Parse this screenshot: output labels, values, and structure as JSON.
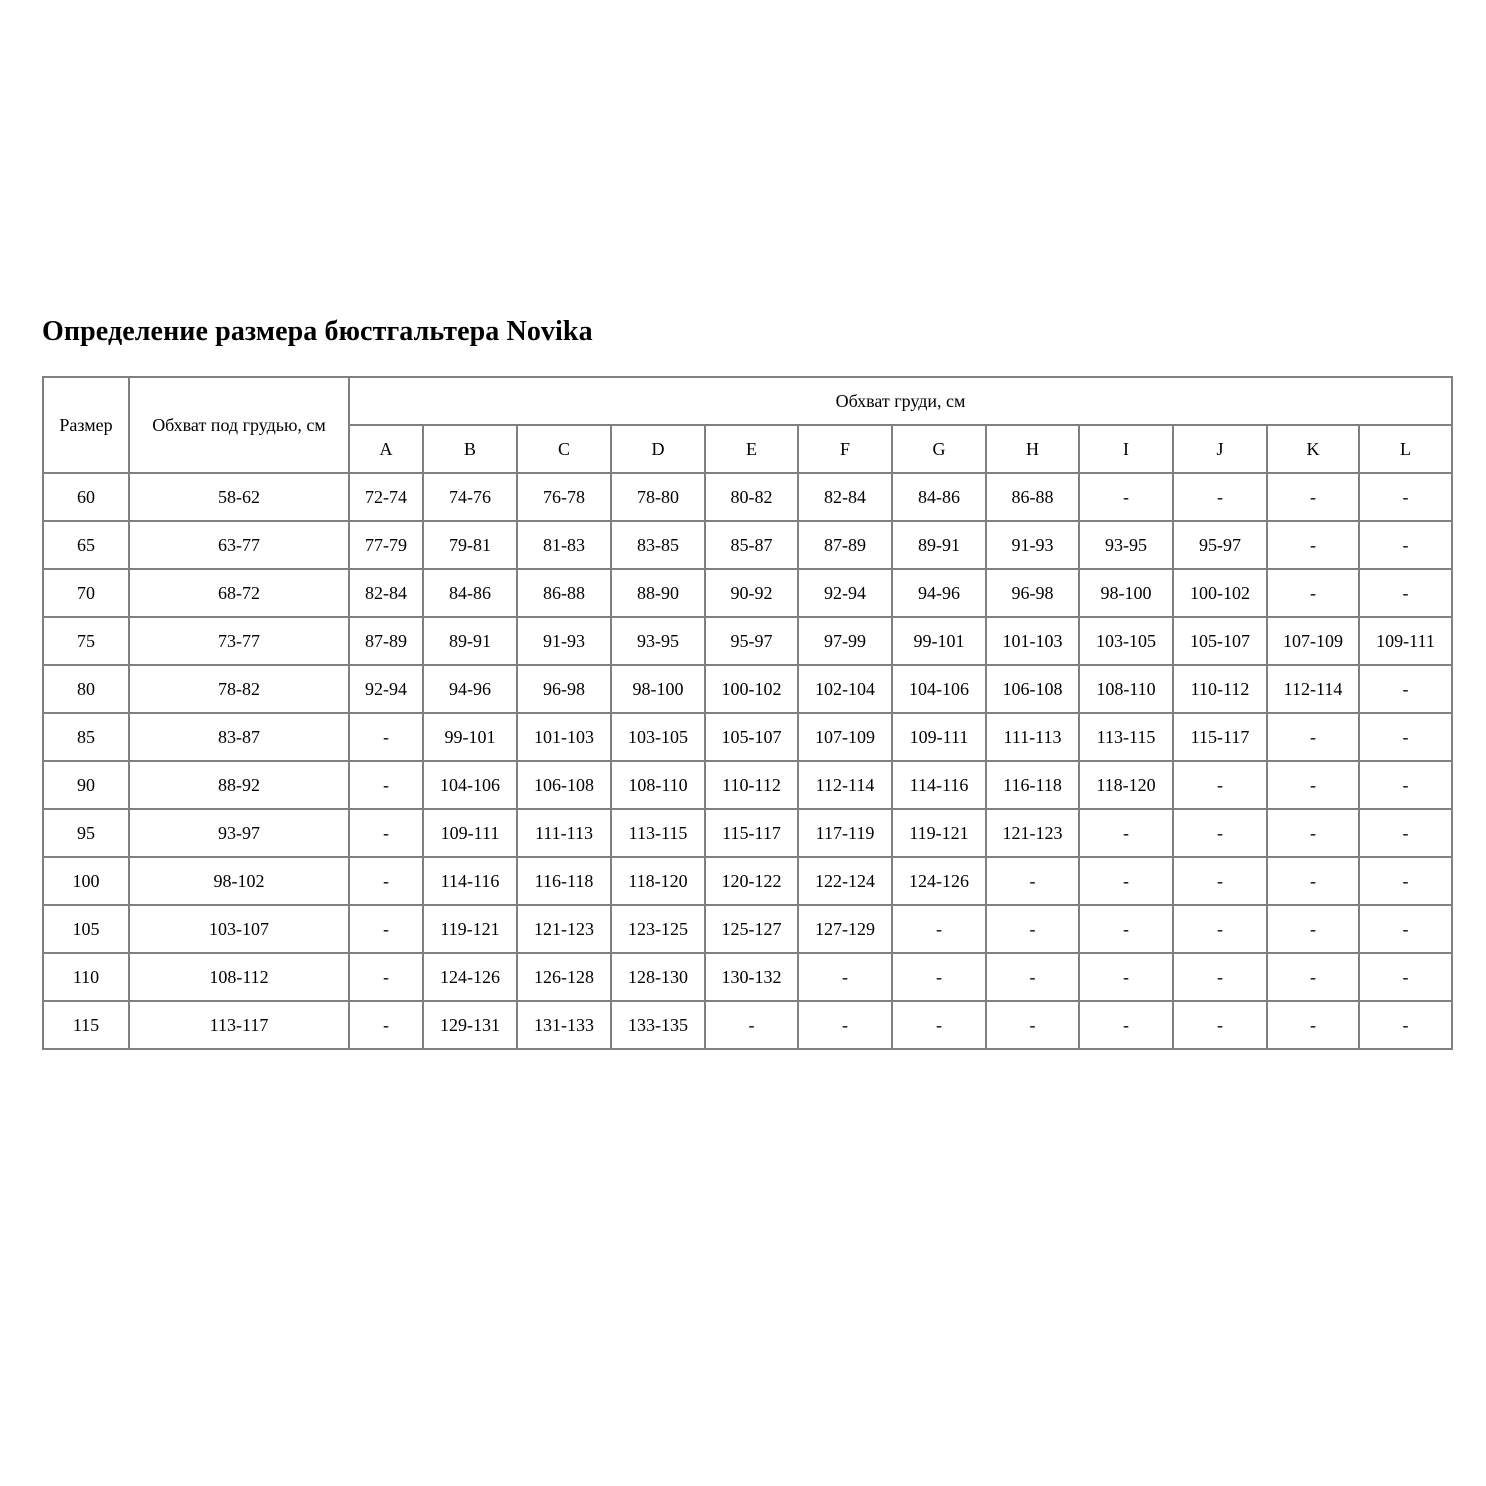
{
  "title": "Определение размера бюстгальтера Novika",
  "table": {
    "size_header": "Размер",
    "underbust_header": "Обхват под грудью, см",
    "bust_header": "Обхват груди, см",
    "cups": [
      "A",
      "B",
      "C",
      "D",
      "E",
      "F",
      "G",
      "H",
      "I",
      "J",
      "K",
      "L"
    ],
    "rows": [
      {
        "size": "60",
        "underbust": "58-62",
        "values": [
          "72-74",
          "74-76",
          "76-78",
          "78-80",
          "80-82",
          "82-84",
          "84-86",
          "86-88",
          "-",
          "-",
          "-",
          "-"
        ]
      },
      {
        "size": "65",
        "underbust": "63-77",
        "values": [
          "77-79",
          "79-81",
          "81-83",
          "83-85",
          "85-87",
          "87-89",
          "89-91",
          "91-93",
          "93-95",
          "95-97",
          "-",
          "-"
        ]
      },
      {
        "size": "70",
        "underbust": "68-72",
        "values": [
          "82-84",
          "84-86",
          "86-88",
          "88-90",
          "90-92",
          "92-94",
          "94-96",
          "96-98",
          "98-100",
          "100-102",
          "-",
          "-"
        ]
      },
      {
        "size": "75",
        "underbust": "73-77",
        "values": [
          "87-89",
          "89-91",
          "91-93",
          "93-95",
          "95-97",
          "97-99",
          "99-101",
          "101-103",
          "103-105",
          "105-107",
          "107-109",
          "109-111"
        ]
      },
      {
        "size": "80",
        "underbust": "78-82",
        "values": [
          "92-94",
          "94-96",
          "96-98",
          "98-100",
          "100-102",
          "102-104",
          "104-106",
          "106-108",
          "108-110",
          "110-112",
          "112-114",
          "-"
        ]
      },
      {
        "size": "85",
        "underbust": "83-87",
        "values": [
          "-",
          "99-101",
          "101-103",
          "103-105",
          "105-107",
          "107-109",
          "109-111",
          "111-113",
          "113-115",
          "115-117",
          "-",
          "-"
        ]
      },
      {
        "size": "90",
        "underbust": "88-92",
        "values": [
          "-",
          "104-106",
          "106-108",
          "108-110",
          "110-112",
          "112-114",
          "114-116",
          "116-118",
          "118-120",
          "-",
          "-",
          "-"
        ]
      },
      {
        "size": "95",
        "underbust": "93-97",
        "values": [
          "-",
          "109-111",
          "111-113",
          "113-115",
          "115-117",
          "117-119",
          "119-121",
          "121-123",
          "-",
          "-",
          "-",
          "-"
        ]
      },
      {
        "size": "100",
        "underbust": "98-102",
        "values": [
          "-",
          "114-116",
          "116-118",
          "118-120",
          "120-122",
          "122-124",
          "124-126",
          "-",
          "-",
          "-",
          "-",
          "-"
        ]
      },
      {
        "size": "105",
        "underbust": "103-107",
        "values": [
          "-",
          "119-121",
          "121-123",
          "123-125",
          "125-127",
          "127-129",
          "-",
          "-",
          "-",
          "-",
          "-",
          "-"
        ]
      },
      {
        "size": "110",
        "underbust": "108-112",
        "values": [
          "-",
          "124-126",
          "126-128",
          "128-130",
          "130-132",
          "-",
          "-",
          "-",
          "-",
          "-",
          "-",
          "-"
        ]
      },
      {
        "size": "115",
        "underbust": "113-117",
        "values": [
          "-",
          "129-131",
          "131-133",
          "133-135",
          "-",
          "-",
          "-",
          "-",
          "-",
          "-",
          "-",
          "-"
        ]
      }
    ]
  }
}
